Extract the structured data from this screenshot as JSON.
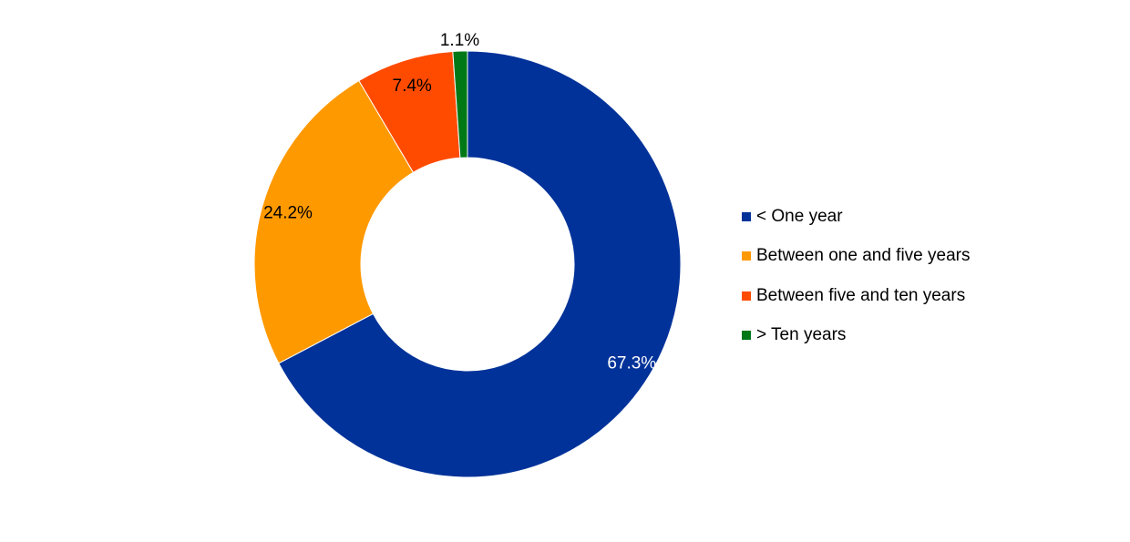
{
  "chart_data": {
    "type": "pie",
    "variant": "donut",
    "title": "",
    "categories": [
      "< One year",
      "Between one and five years",
      "Between five and ten years",
      "> Ten years"
    ],
    "values": [
      67.3,
      24.2,
      7.4,
      1.1
    ],
    "labels": [
      "67.3%",
      "24.2%",
      "7.4%",
      "1.1%"
    ],
    "colors": [
      "#003299",
      "#FF9900",
      "#FF4B00",
      "#007816"
    ],
    "label_colors": [
      "#ffffff",
      "#000000",
      "#000000",
      "#000000"
    ],
    "start": "12 o'clock",
    "direction": "clockwise",
    "legend_position": "right"
  }
}
